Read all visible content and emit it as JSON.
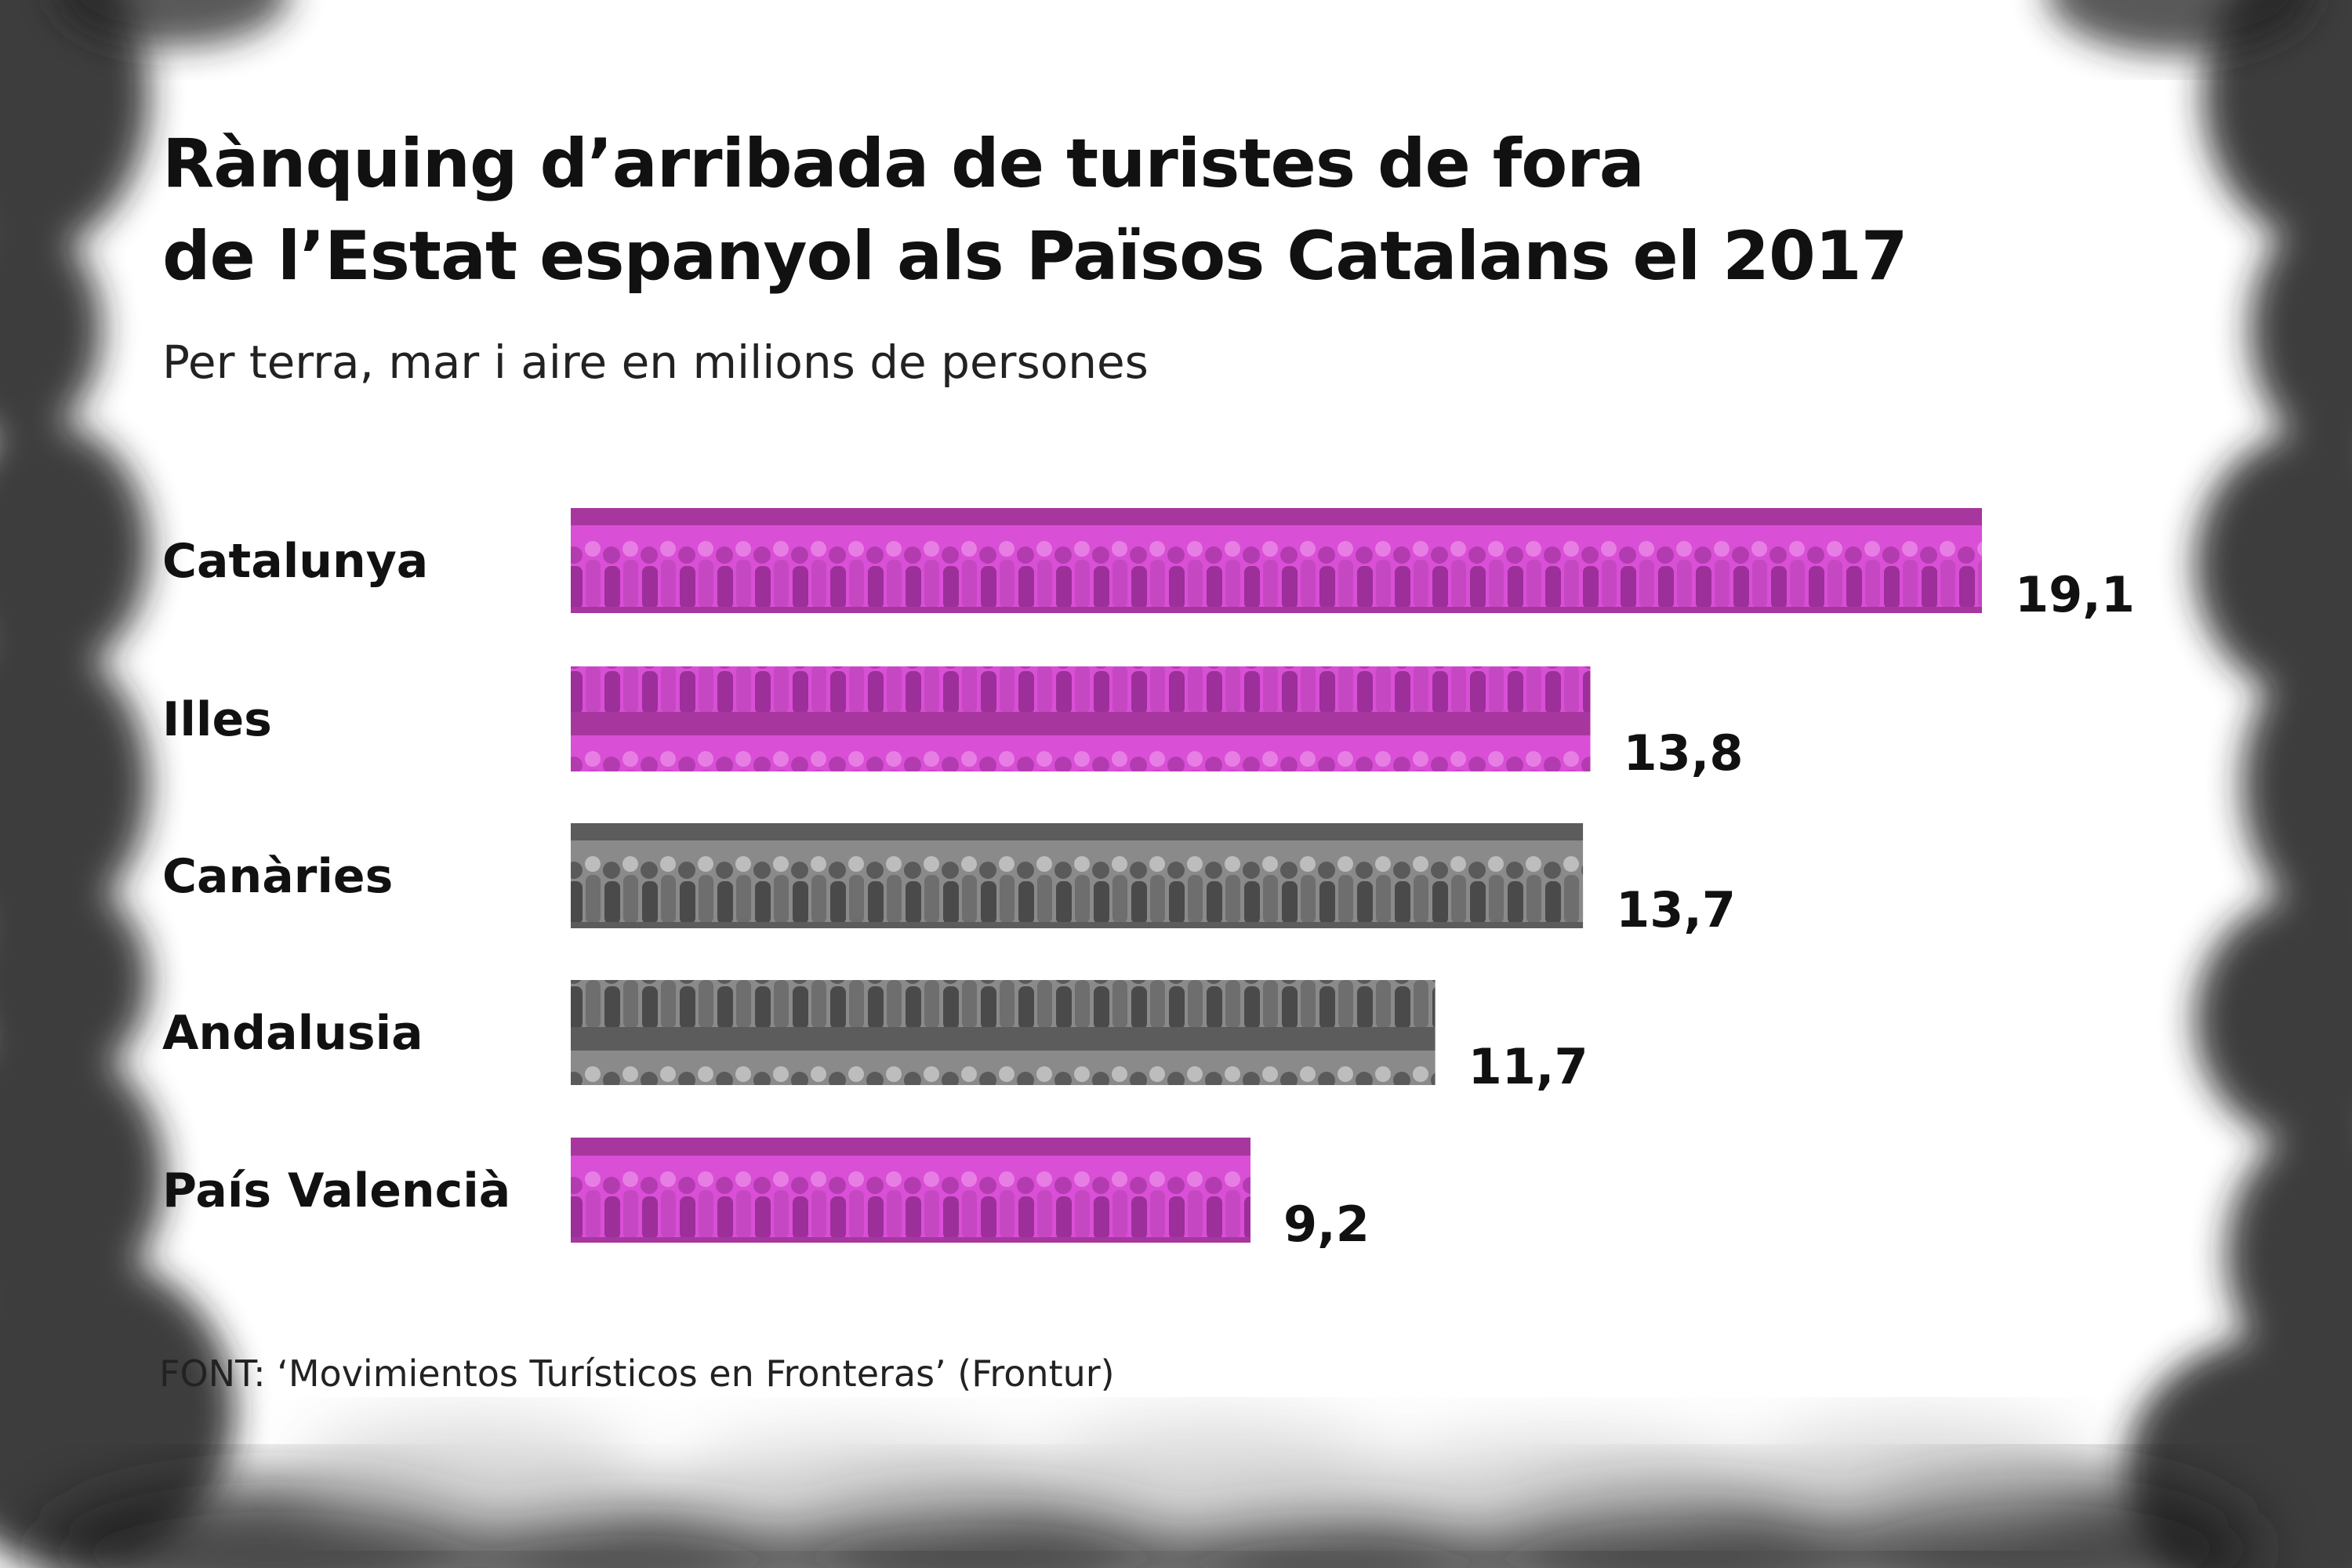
{
  "chart_data": {
    "type": "bar",
    "orientation": "horizontal",
    "title_lines": [
      "Rànquing d’arribada de turistes de fora",
      "de l’Estat espanyol als Països Catalans el 2017"
    ],
    "subtitle": "Per terra, mar i aire en milions de persones",
    "categories": [
      "Catalunya",
      "Illes",
      "Canàries",
      "Andalusia",
      "País Valencià"
    ],
    "values": [
      19.1,
      13.8,
      13.7,
      11.7,
      9.2
    ],
    "value_labels": [
      "19,1",
      "13,8",
      "13,7",
      "11,7",
      "9,2"
    ],
    "bar_styles": [
      "magenta",
      "magenta",
      "gray",
      "gray",
      "magenta"
    ],
    "xlim": [
      0,
      19.1
    ],
    "xlabel": "",
    "ylabel": "",
    "grid": false,
    "legend": "none",
    "source": "FONT: ‘Movimientos Turísticos en Fronteras’ (Frontur)"
  },
  "colors": {
    "magenta": "#d94fd6",
    "gray": "#8a8a8a",
    "text": "#111111",
    "smoke": "#1c1c1c"
  }
}
